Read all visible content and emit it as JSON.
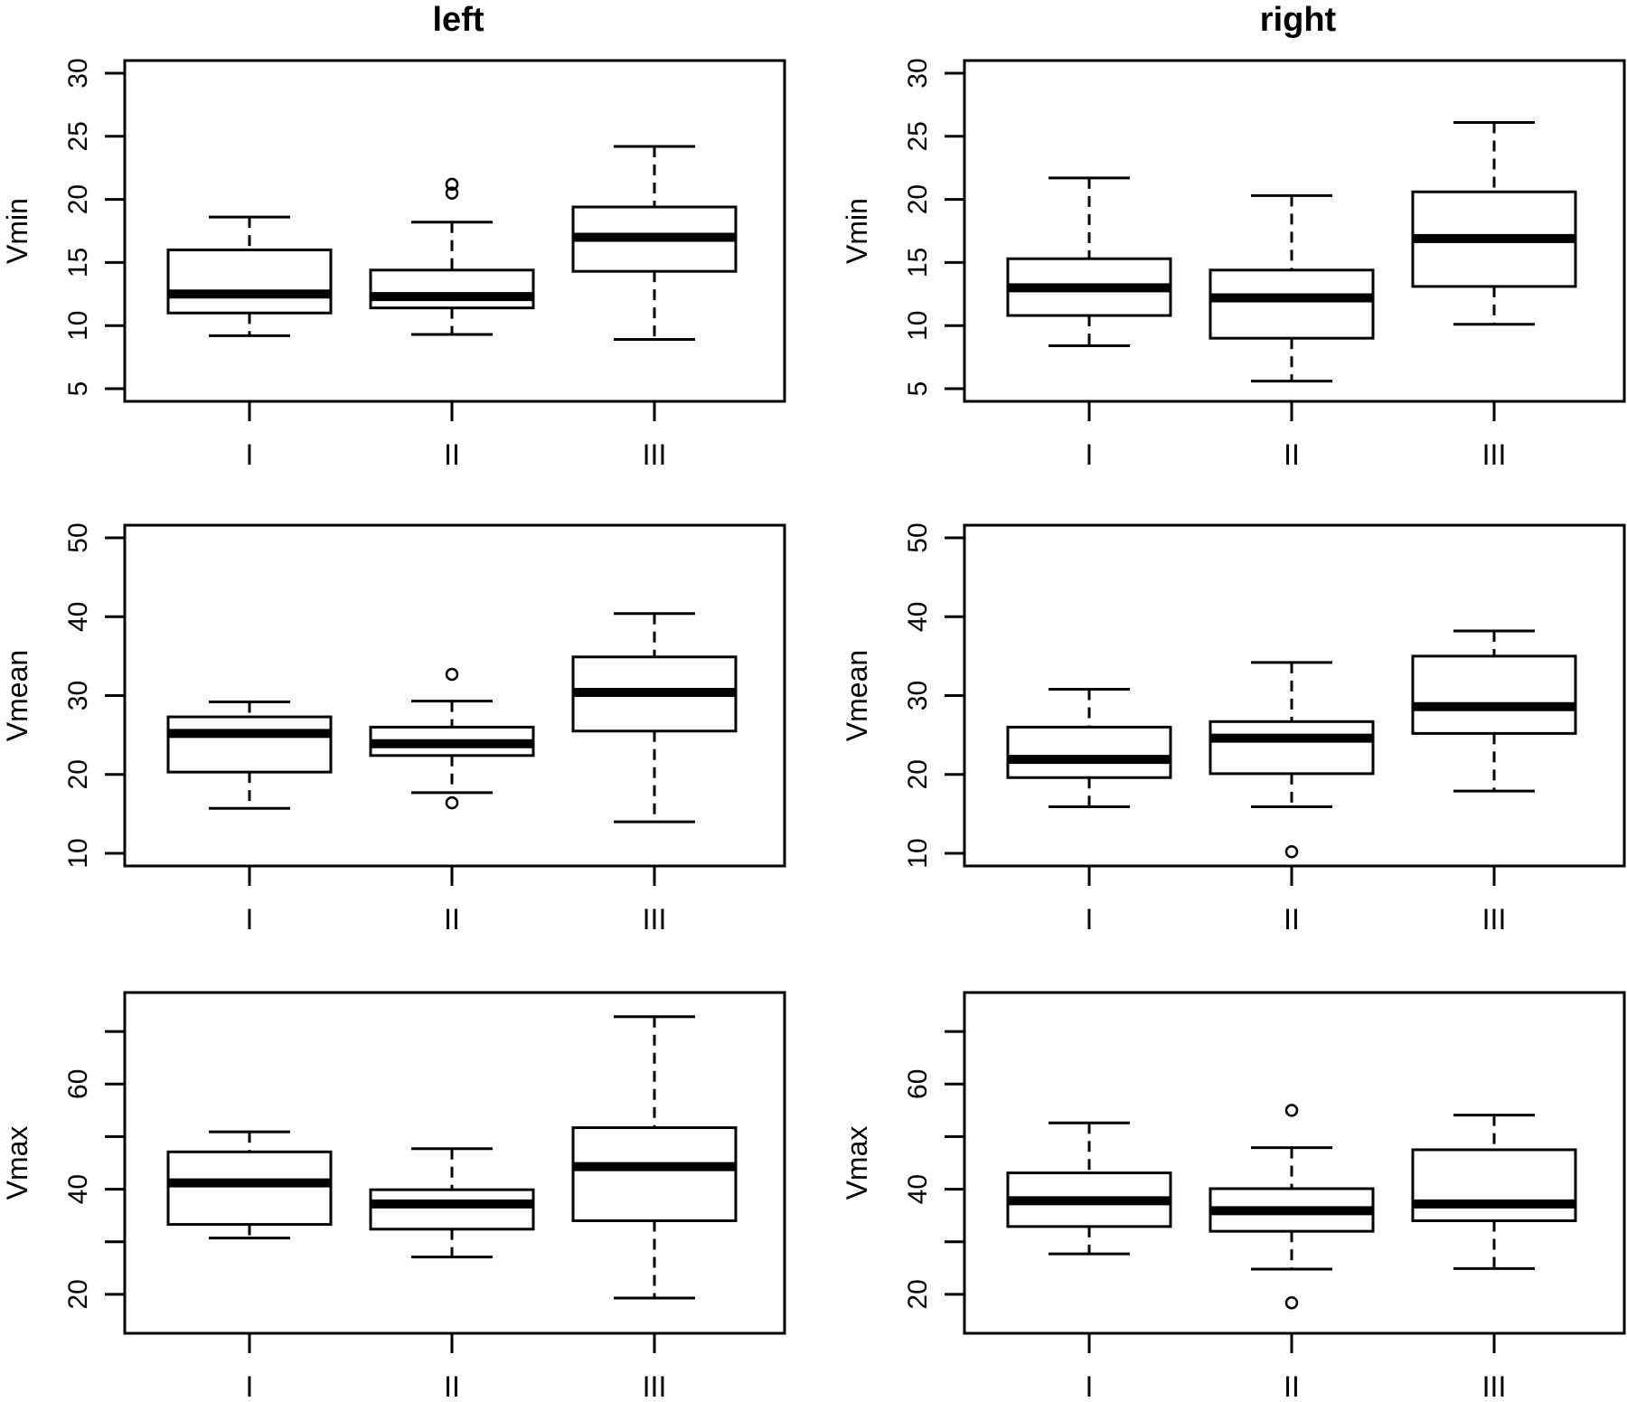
{
  "chart_data": [
    {
      "type": "box",
      "panel": "left",
      "title": "left",
      "ylabel": "Vmin",
      "ylim": [
        5,
        30
      ],
      "yticks": [
        5,
        10,
        15,
        20,
        25,
        30
      ],
      "categories": [
        "I",
        "II",
        "III"
      ],
      "boxes": [
        {
          "min": 9.2,
          "q1": 11.0,
          "median": 12.5,
          "q3": 16.0,
          "max": 18.6,
          "outliers": []
        },
        {
          "min": 9.3,
          "q1": 11.4,
          "median": 12.3,
          "q3": 14.4,
          "max": 18.2,
          "outliers": [
            20.5,
            21.2
          ]
        },
        {
          "min": 8.9,
          "q1": 14.3,
          "median": 17.0,
          "q3": 19.4,
          "max": 24.2,
          "outliers": []
        }
      ]
    },
    {
      "type": "box",
      "panel": "right",
      "title": "right",
      "ylabel": "Vmin",
      "ylim": [
        5,
        30
      ],
      "yticks": [
        5,
        10,
        15,
        20,
        25,
        30
      ],
      "categories": [
        "I",
        "II",
        "III"
      ],
      "boxes": [
        {
          "min": 8.4,
          "q1": 10.8,
          "median": 13.0,
          "q3": 15.3,
          "max": 21.7,
          "outliers": []
        },
        {
          "min": 5.6,
          "q1": 9.0,
          "median": 12.2,
          "q3": 14.4,
          "max": 20.3,
          "outliers": []
        },
        {
          "min": 10.1,
          "q1": 13.1,
          "median": 16.9,
          "q3": 20.6,
          "max": 26.1,
          "outliers": []
        }
      ]
    },
    {
      "type": "box",
      "panel": "left",
      "ylabel": "Vmean",
      "ylim": [
        10,
        50
      ],
      "yticks": [
        10,
        20,
        30,
        40,
        50
      ],
      "categories": [
        "I",
        "II",
        "III"
      ],
      "boxes": [
        {
          "min": 15.7,
          "q1": 20.3,
          "median": 25.2,
          "q3": 27.3,
          "max": 29.2,
          "outliers": []
        },
        {
          "min": 17.7,
          "q1": 22.4,
          "median": 23.9,
          "q3": 26.0,
          "max": 29.3,
          "outliers": [
            16.4,
            32.7
          ]
        },
        {
          "min": 14.0,
          "q1": 25.5,
          "median": 30.4,
          "q3": 34.9,
          "max": 40.4,
          "outliers": []
        }
      ]
    },
    {
      "type": "box",
      "panel": "right",
      "ylabel": "Vmean",
      "ylim": [
        10,
        50
      ],
      "yticks": [
        10,
        20,
        30,
        40,
        50
      ],
      "categories": [
        "I",
        "II",
        "III"
      ],
      "boxes": [
        {
          "min": 15.9,
          "q1": 19.6,
          "median": 21.9,
          "q3": 26.0,
          "max": 30.8,
          "outliers": []
        },
        {
          "min": 15.9,
          "q1": 20.1,
          "median": 24.6,
          "q3": 26.7,
          "max": 34.2,
          "outliers": [
            10.2
          ]
        },
        {
          "min": 17.9,
          "q1": 25.2,
          "median": 28.6,
          "q3": 35.0,
          "max": 38.2,
          "outliers": []
        }
      ]
    },
    {
      "type": "box",
      "panel": "left",
      "ylabel": "Vmax",
      "ylim": [
        15,
        75
      ],
      "yticks": [
        20,
        30,
        40,
        50,
        60,
        70
      ],
      "ytick_labels": [
        "20",
        "",
        "40",
        "",
        "60",
        ""
      ],
      "categories": [
        "I",
        "II",
        "III"
      ],
      "boxes": [
        {
          "min": 30.7,
          "q1": 33.3,
          "median": 41.2,
          "q3": 47.1,
          "max": 50.9,
          "outliers": []
        },
        {
          "min": 27.1,
          "q1": 32.4,
          "median": 37.2,
          "q3": 39.9,
          "max": 47.7,
          "outliers": []
        },
        {
          "min": 19.3,
          "q1": 34.0,
          "median": 44.3,
          "q3": 51.7,
          "max": 72.8,
          "outliers": []
        }
      ]
    },
    {
      "type": "box",
      "panel": "right",
      "ylabel": "Vmax",
      "ylim": [
        15,
        75
      ],
      "yticks": [
        20,
        30,
        40,
        50,
        60,
        70
      ],
      "ytick_labels": [
        "20",
        "",
        "40",
        "",
        "60",
        ""
      ],
      "categories": [
        "I",
        "II",
        "III"
      ],
      "boxes": [
        {
          "min": 27.7,
          "q1": 32.9,
          "median": 37.8,
          "q3": 43.1,
          "max": 52.6,
          "outliers": []
        },
        {
          "min": 24.8,
          "q1": 32.0,
          "median": 35.9,
          "q3": 40.1,
          "max": 47.9,
          "outliers": [
            18.4,
            55.0
          ]
        },
        {
          "min": 24.9,
          "q1": 34.0,
          "median": 37.2,
          "q3": 47.5,
          "max": 54.1,
          "outliers": []
        }
      ]
    }
  ]
}
